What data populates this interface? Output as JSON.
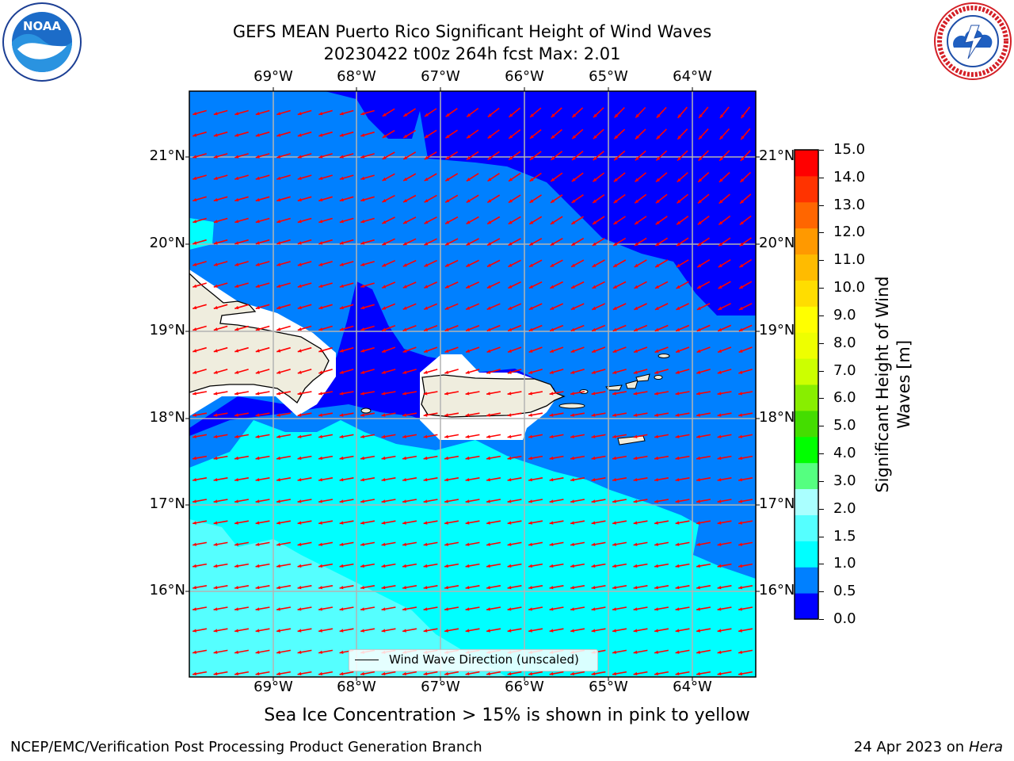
{
  "title": {
    "line1": "GEFS MEAN Puerto Rico Significant Height of Wind Waves",
    "line2": "20230422 t00z 264h fcst   Max: 2.01"
  },
  "logos": {
    "left": {
      "icon": "noaa-logo",
      "text": "NOAA",
      "ring_text": "NATIONAL OCEANIC AND ATMOSPHERIC ADMINISTRATION · U.S. DEPARTMENT OF COMMERCE"
    },
    "right": {
      "icon": "nws-logo",
      "ring_text": "NATIONAL WEATHER SERVICE"
    }
  },
  "map": {
    "lon_labels": [
      "69°W",
      "68°W",
      "67°W",
      "66°W",
      "65°W",
      "64°W"
    ],
    "lat_labels": [
      "21°N",
      "20°N",
      "19°N",
      "18°N",
      "17°N",
      "16°N"
    ],
    "arrow_color": "#ff0000",
    "land_color": "#efedde"
  },
  "legend": {
    "label": "Wind Wave Direction (unscaled)"
  },
  "colorbar": {
    "title_line1": "Significant Height of Wind",
    "title_line2": "Waves [m]",
    "ticks": [
      "15.0",
      "14.0",
      "13.0",
      "12.0",
      "11.0",
      "10.0",
      "9.0",
      "8.0",
      "7.0",
      "6.0",
      "5.0",
      "4.0",
      "3.0",
      "2.0",
      "1.5",
      "1.0",
      "0.5",
      "0.0"
    ],
    "colors": [
      "#0000ff",
      "#0080ff",
      "#00ffff",
      "#55ffff",
      "#aaffff",
      "#55ff80",
      "#00ff00",
      "#44dd00",
      "#88ee00",
      "#ccff00",
      "#eeff00",
      "#ffff00",
      "#ffdd00",
      "#ffbb00",
      "#ff9900",
      "#ff6600",
      "#ff3300",
      "#ff0000"
    ]
  },
  "caption": "Sea Ice Concentration > 15% is shown in pink to yellow",
  "footer": {
    "left": "NCEP/EMC/Verification Post Processing Product Generation Branch",
    "right_prefix": "24 Apr 2023 on ",
    "right_host": "Hera"
  }
}
